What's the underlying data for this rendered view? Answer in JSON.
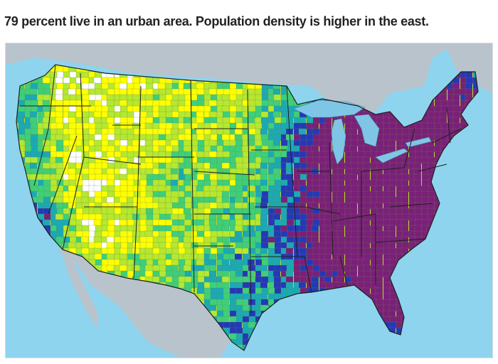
{
  "headline": "79 percent live in an urban area. Population density is higher in the east.",
  "map": {
    "subject": "County-level population density of the contiguous United States",
    "colors": {
      "ocean": "#8fd4ee",
      "land_outside": "#b9c3cb",
      "lakes": "#7fc6e6",
      "state_border": "#1f1f1f",
      "density_scale_low_to_high": [
        "#ffffff",
        "#ffff00",
        "#b6e830",
        "#3fcf7a",
        "#1ba9b5",
        "#2438b8",
        "#7a1f7a"
      ]
    },
    "pattern": "Lowest density (white/yellow) in the West and Great Plains; highest density (blue/purple) along coasts, the Great Lakes, and throughout the East."
  }
}
